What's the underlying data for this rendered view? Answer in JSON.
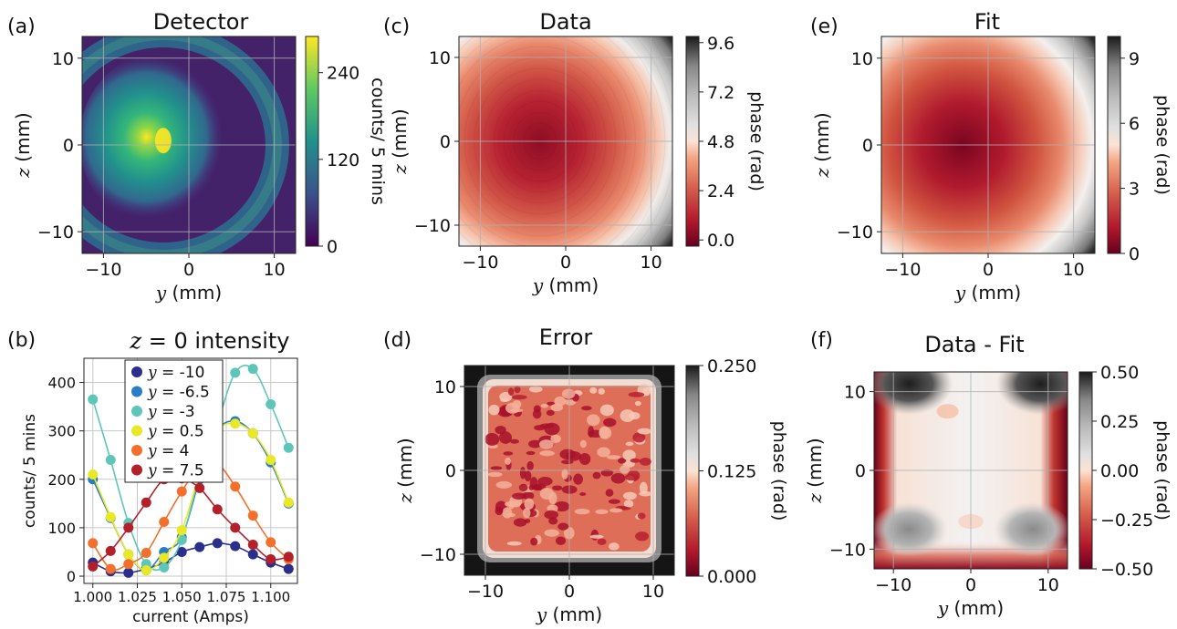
{
  "panels": {
    "a": {
      "label": "(a)",
      "title": "Detector",
      "type": "heatmap",
      "xlabel_var": "y",
      "xlabel_unit": "(mm)",
      "ylabel_var": "z",
      "ylabel_unit": "(mm)",
      "xticks": [
        "−10",
        "0",
        "10"
      ],
      "yticks": [
        "10",
        "0",
        "−10"
      ],
      "colorbar_label": "counts/ 5 mins",
      "colorbar_ticks": [
        "240",
        "120",
        "0"
      ],
      "colormap": "viridis",
      "clim": [
        0,
        290
      ],
      "chart_data": {
        "type": "heatmap",
        "xlim": [
          -12.5,
          12.5
        ],
        "ylim": [
          -12.5,
          12.5
        ],
        "peak_location_mm": [
          -3,
          0.5
        ],
        "peak_value": 290,
        "grid": true
      }
    },
    "c": {
      "label": "(c)",
      "title": "Data",
      "type": "heatmap",
      "xlabel_var": "y",
      "xlabel_unit": "(mm)",
      "ylabel_var": "z",
      "ylabel_unit": "(mm)",
      "xticks": [
        "−10",
        "0",
        "10"
      ],
      "yticks": [
        "10",
        "0",
        "−10"
      ],
      "colorbar_label": "phase (rad)",
      "colorbar_ticks": [
        "9.6",
        "7.2",
        "4.8",
        "2.4",
        "0.0"
      ],
      "colormap": "RdGy",
      "clim": [
        0,
        9.6
      ],
      "chart_data": {
        "type": "heatmap",
        "xlim": [
          -12.5,
          12.5
        ],
        "ylim": [
          -12.5,
          12.5
        ],
        "minimum_location_mm": [
          -3,
          0
        ],
        "range": [
          0,
          9.6
        ],
        "grid": true
      }
    },
    "e": {
      "label": "(e)",
      "title": "Fit",
      "type": "heatmap",
      "xlabel_var": "y",
      "xlabel_unit": "(mm)",
      "ylabel_var": "z",
      "ylabel_unit": "(mm)",
      "xticks": [
        "−10",
        "0",
        "10"
      ],
      "yticks": [
        "10",
        "0",
        "−10"
      ],
      "colorbar_label": "phase (rad)",
      "colorbar_ticks": [
        "9",
        "6",
        "3",
        "0"
      ],
      "colormap": "RdGy",
      "clim": [
        0,
        10
      ],
      "chart_data": {
        "type": "heatmap",
        "xlim": [
          -12.5,
          12.5
        ],
        "ylim": [
          -12.5,
          12.5
        ],
        "minimum_location_mm": [
          -3,
          0
        ],
        "range": [
          0,
          10
        ],
        "grid": true
      }
    },
    "b": {
      "label": "(b)",
      "title_var": "z",
      "title_rest": " = 0 intensity",
      "type": "line",
      "xlabel": "current (Amps)",
      "ylabel": "counts/ 5 mins",
      "xticks": [
        "1.000",
        "1.025",
        "1.050",
        "1.075",
        "1.100"
      ],
      "yticks": [
        "400",
        "300",
        "200",
        "100",
        "0"
      ],
      "chart_data": {
        "type": "line",
        "x": [
          1.0,
          1.01,
          1.02,
          1.03,
          1.04,
          1.05,
          1.06,
          1.07,
          1.08,
          1.09,
          1.1,
          1.11
        ],
        "xlim": [
          0.995,
          1.115
        ],
        "ylim": [
          -15,
          450
        ],
        "grid": true,
        "legend_position": "top-left",
        "series": [
          {
            "name": "-10",
            "color": "#2b2f8c",
            "values": [
              28,
              10,
              7,
              15,
              28,
              50,
              60,
              68,
              62,
              45,
              28,
              15
            ]
          },
          {
            "name": "-6.5",
            "color": "#2a7dc4",
            "values": [
              200,
              120,
              45,
              12,
              50,
              80,
              200,
              300,
              320,
              295,
              235,
              150
            ]
          },
          {
            "name": "-3",
            "color": "#5ec6b9",
            "values": [
              365,
              240,
              110,
              25,
              18,
              75,
              210,
              315,
              420,
              428,
              355,
              265
            ]
          },
          {
            "name": "0.5",
            "color": "#e8e827",
            "values": [
              210,
              122,
              45,
              12,
              38,
              95,
              210,
              300,
              315,
              295,
              240,
              152
            ]
          },
          {
            "name": "4",
            "color": "#f36f2a",
            "values": [
              68,
              15,
              25,
              48,
              112,
              175,
              225,
              232,
              185,
              125,
              70,
              35
            ]
          },
          {
            "name": "7.5",
            "color": "#b22029",
            "values": [
              20,
              52,
              100,
              152,
              200,
              202,
              182,
              138,
              100,
              65,
              35,
              40
            ]
          }
        ]
      }
    },
    "d": {
      "label": "(d)",
      "title": "Error",
      "type": "heatmap",
      "xlabel_var": "y",
      "xlabel_unit": "(mm)",
      "ylabel_var": "z",
      "ylabel_unit": "(mm)",
      "xticks": [
        "−10",
        "0",
        "10"
      ],
      "yticks": [
        "10",
        "0",
        "−10"
      ],
      "colorbar_label": "phase (rad)",
      "colorbar_ticks": [
        "0.250",
        "0.125",
        "0.000"
      ],
      "colormap": "RdGy",
      "clim": [
        0,
        0.25
      ],
      "chart_data": {
        "type": "heatmap",
        "xlim": [
          -12.5,
          12.5
        ],
        "ylim": [
          -12.5,
          12.5
        ],
        "range": [
          0,
          0.25
        ],
        "grid": true
      }
    },
    "f": {
      "label": "(f)",
      "title": "Data - Fit",
      "type": "heatmap",
      "xlabel_var": "y",
      "xlabel_unit": "(mm)",
      "ylabel_var": "z",
      "ylabel_unit": "(mm)",
      "xticks": [
        "−10",
        "0",
        "10"
      ],
      "yticks": [
        "10",
        "0",
        "−10"
      ],
      "colorbar_label": "phase (rad)",
      "colorbar_ticks": [
        "0.50",
        "0.25",
        "0.00",
        "−0.25",
        "−0.50"
      ],
      "colormap": "RdGy",
      "clim": [
        -0.5,
        0.5
      ],
      "chart_data": {
        "type": "heatmap",
        "xlim": [
          -12.5,
          12.5
        ],
        "ylim": [
          -12.5,
          12.5
        ],
        "range": [
          -0.5,
          0.5
        ],
        "grid": true
      }
    }
  }
}
